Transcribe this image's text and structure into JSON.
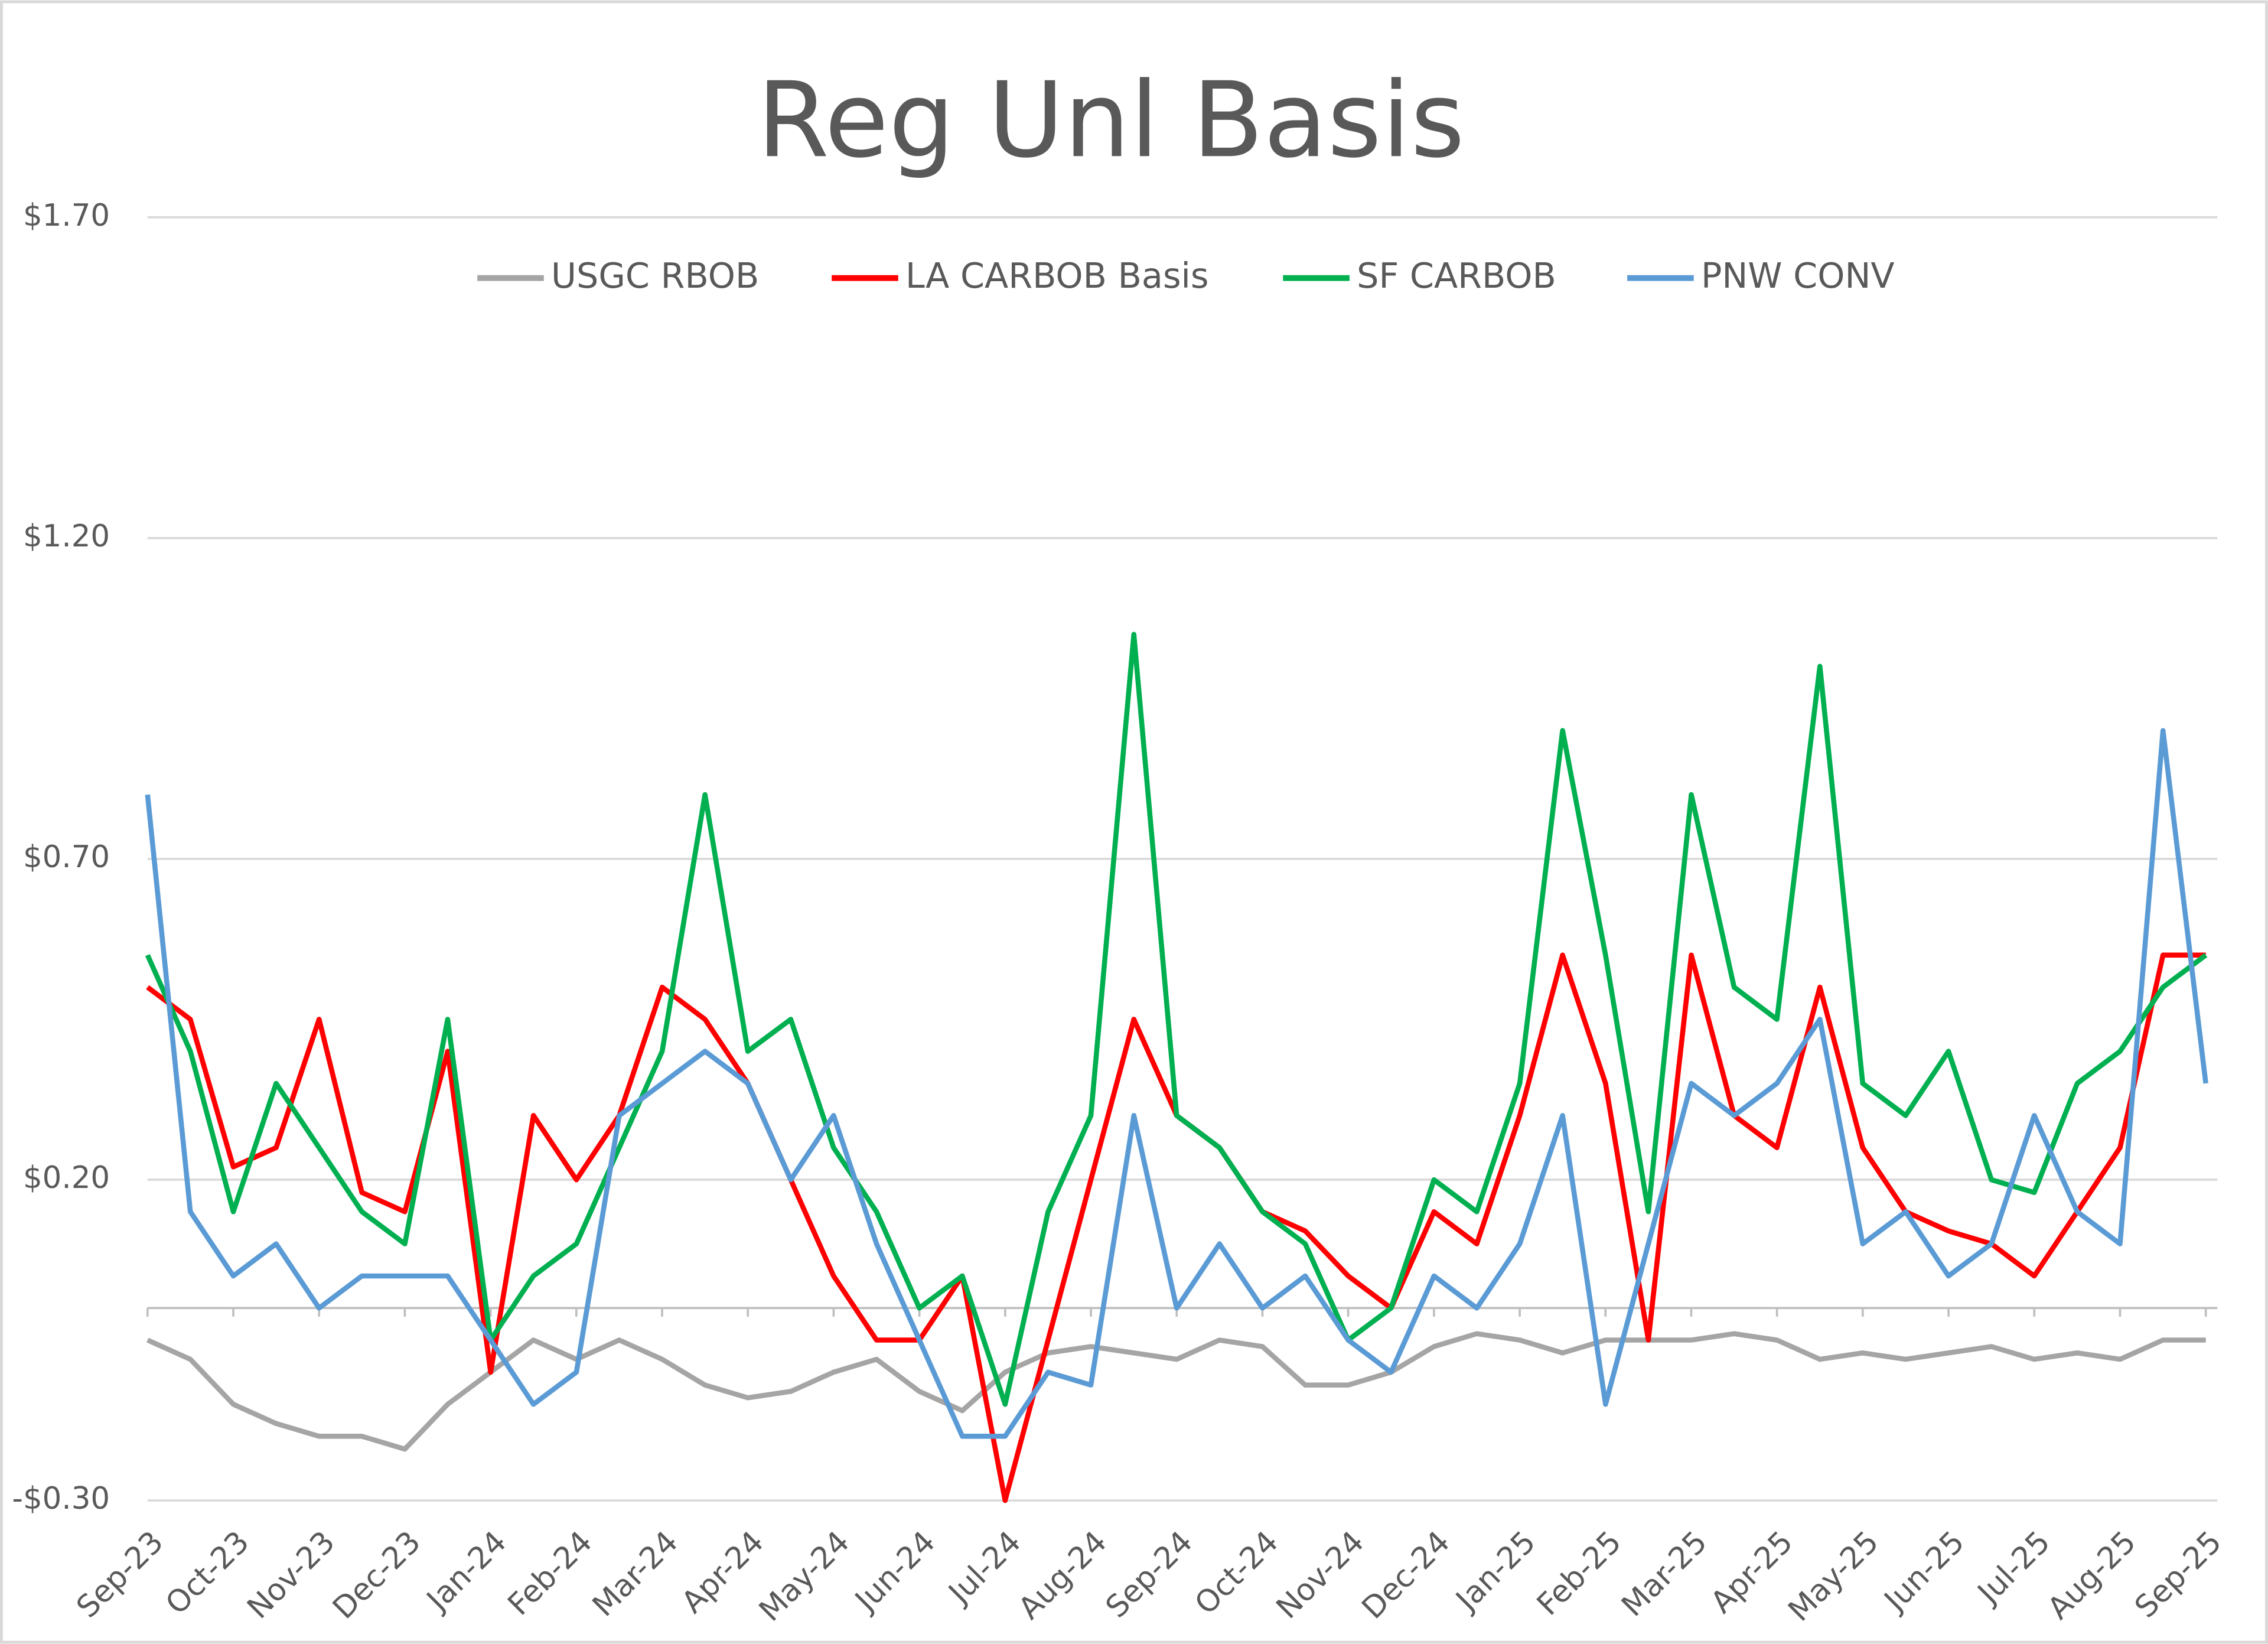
{
  "chart_data": {
    "type": "line",
    "title": "Reg Unl Basis",
    "categories": [
      "Sep-23",
      null,
      "Oct-23",
      null,
      "Nov-23",
      null,
      "Dec-23",
      null,
      "Jan-24",
      null,
      "Feb-24",
      null,
      "Mar-24",
      null,
      "Apr-24",
      null,
      "May-24",
      null,
      "Jun-24",
      null,
      "Jul-24",
      null,
      "Aug-24",
      null,
      "Sep-24",
      null,
      "Oct-24",
      null,
      "Nov-24",
      null,
      "Dec-24",
      null,
      "Jan-25",
      null,
      "Feb-25",
      null,
      "Mar-25",
      null,
      "Apr-25",
      null,
      "May-25",
      null,
      "Jun-25",
      null,
      "Jul-25",
      null,
      "Aug-25",
      null,
      "Sep-25"
    ],
    "series": [
      {
        "name": "USGC RBOB",
        "color": "#a5a5a5",
        "values": [
          -0.05,
          -0.08,
          -0.15,
          -0.18,
          -0.2,
          -0.2,
          -0.22,
          -0.15,
          -0.1,
          -0.05,
          -0.08,
          -0.05,
          -0.08,
          -0.12,
          -0.14,
          -0.13,
          -0.1,
          -0.08,
          -0.13,
          -0.16,
          -0.1,
          -0.07,
          -0.06,
          -0.07,
          -0.08,
          -0.05,
          -0.06,
          -0.12,
          -0.12,
          -0.1,
          -0.06,
          -0.04,
          -0.05,
          -0.07,
          -0.05,
          -0.05,
          -0.05,
          -0.04,
          -0.05,
          -0.08,
          -0.07,
          -0.08,
          -0.07,
          -0.06,
          -0.08,
          -0.07,
          -0.08,
          -0.05,
          -0.05
        ]
      },
      {
        "name": "LA CARBOB Basis",
        "color": "#ff0000",
        "values": [
          0.5,
          0.45,
          0.22,
          0.25,
          0.45,
          0.18,
          0.15,
          0.4,
          -0.1,
          0.3,
          0.2,
          0.3,
          0.5,
          0.45,
          0.35,
          0.2,
          0.05,
          -0.05,
          -0.05,
          0.05,
          -0.3,
          -0.05,
          0.2,
          0.45,
          0.3,
          0.25,
          0.15,
          0.12,
          0.05,
          0.0,
          0.15,
          0.1,
          0.3,
          0.55,
          0.35,
          -0.05,
          0.55,
          0.3,
          0.25,
          0.5,
          0.25,
          0.15,
          0.12,
          0.1,
          0.05,
          0.15,
          0.25,
          0.55,
          0.55
        ]
      },
      {
        "name": "SF CARBOB",
        "color": "#00b050",
        "values": [
          0.55,
          0.4,
          0.15,
          0.35,
          0.25,
          0.15,
          0.1,
          0.45,
          -0.05,
          0.05,
          0.1,
          0.25,
          0.4,
          0.8,
          0.4,
          0.45,
          0.25,
          0.15,
          0.0,
          0.05,
          -0.15,
          0.15,
          0.3,
          1.05,
          0.3,
          0.25,
          0.15,
          0.1,
          -0.05,
          0.0,
          0.2,
          0.15,
          0.35,
          0.9,
          0.55,
          0.15,
          0.8,
          0.5,
          0.45,
          1.0,
          0.35,
          0.3,
          0.4,
          0.2,
          0.18,
          0.35,
          0.4,
          0.5,
          0.55
        ]
      },
      {
        "name": "PNW CONV",
        "color": "#5b9bd5",
        "values": [
          0.8,
          0.15,
          0.05,
          0.1,
          0.0,
          0.05,
          0.05,
          0.05,
          -0.05,
          -0.15,
          -0.1,
          0.3,
          0.35,
          0.4,
          0.35,
          0.2,
          0.3,
          0.1,
          -0.05,
          -0.2,
          -0.2,
          -0.1,
          -0.12,
          0.3,
          0.0,
          0.1,
          0.0,
          0.05,
          -0.05,
          -0.1,
          0.05,
          0.0,
          0.1,
          0.3,
          -0.15,
          0.1,
          0.35,
          0.3,
          0.35,
          0.45,
          0.1,
          0.15,
          0.05,
          0.1,
          0.3,
          0.15,
          0.1,
          0.9,
          0.35
        ]
      }
    ],
    "ylim": [
      -0.3,
      1.7
    ],
    "yticks": [
      {
        "value": -0.3,
        "label": "-$0.30"
      },
      {
        "value": 0.2,
        "label": "$0.20"
      },
      {
        "value": 0.7,
        "label": "$0.70"
      },
      {
        "value": 1.2,
        "label": "$1.20"
      },
      {
        "value": 1.7,
        "label": "$1.70"
      }
    ],
    "grid": true,
    "legend": "top"
  }
}
